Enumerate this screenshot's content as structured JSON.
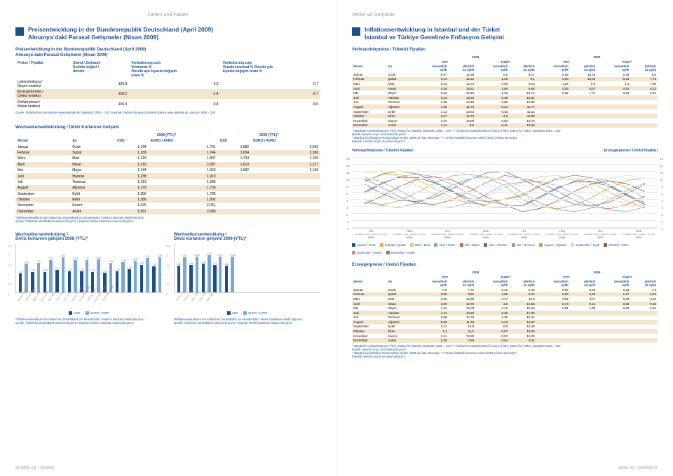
{
  "headers": {
    "left": "Zahlen und Fakten",
    "right": "Veriler ve Gerçekler"
  },
  "left_page": {
    "title_de": "Preisentwicklung in der Bundesrepublik Deutschland (April 2009)",
    "title_tr": "Almanya´daki Parasal Gelişmeler (Nisan 2009)",
    "price_table": {
      "caption_de": "Preisentwicklung in der Bundesrepublik Deutschland (April 2009)",
      "caption_tr": "Almanya´daki Parasal Gelişmeler (Nisan 2009)",
      "cols": [
        "Preise / Fiyatlar",
        "Stand / Zeitraum\nEndeks değeri /\ndönem",
        "Veränderung zum\nVormonat %\nÖnceki aya kıyasla değişim\noranı %",
        "Veränderung zum\nVorjahresmonat %  Önceki yıla\nkıyasla değişim oranı %"
      ],
      "rows": [
        [
          "Lebenshaltung /\nGeçim endeksi",
          "106,8",
          "0,0",
          "0,7"
        ],
        [
          "Erzeugerpreise /\nÜretici endeksi",
          "108,2",
          "-1,4",
          "-2,7"
        ],
        [
          "Einfuhrpreise /\nİthalat endeksi",
          "100,4",
          "-0,8",
          "-8,6"
        ]
      ],
      "source": "Quelle: Statistisches Bundesamt www.destatis.de, Basisjahr 2005 = 100 / Kaynak: Federal Almanya İstatistik Dairesi www.destatis.de, Baz yılı 2005 = 100"
    },
    "fx_table": {
      "caption": "Wechselkursentwicklung / Döviz Kurlarının Gelişimi",
      "year_cols": [
        "2008 (YTL)*",
        "2009 (YTL)*"
      ],
      "head": [
        "Monat",
        "Ay",
        "USD",
        "EURO / AVRO",
        "USD",
        "EURO / AVRO"
      ],
      "rows": [
        [
          "Januar",
          "Ocak",
          "1,144",
          "1,701",
          "1,582",
          "2,092"
        ],
        [
          "Februar",
          "Şubat",
          "1,189",
          "1,744",
          "1,634",
          "2,106"
        ],
        [
          "März",
          "Mart",
          "1,218",
          "1,897",
          "1,704",
          "2,199"
        ],
        [
          "April",
          "Nisan",
          "1,319",
          "2,097",
          "1,610",
          "2,127"
        ],
        [
          "Mai",
          "Mayıs",
          "1,244",
          "1,929",
          "1,582",
          "2,146"
        ],
        [
          "Juni",
          "Haziran",
          "1,238",
          "1,910",
          "",
          ""
        ],
        [
          "Juli",
          "Temmuz",
          "1,213",
          "1,939",
          "",
          ""
        ],
        [
          "August",
          "Ağustos",
          "1,179",
          "1,736",
          "",
          ""
        ],
        [
          "September",
          "Eylül",
          "1,256",
          "1,785",
          "",
          ""
        ],
        [
          "Oktober",
          "Ekim",
          "1,389",
          "1,892",
          "",
          ""
        ],
        [
          "November",
          "Kasım",
          "1,625",
          "2,061",
          "",
          ""
        ],
        [
          "Dezember",
          "Aralık",
          "1,557",
          "2,099",
          "",
          ""
        ]
      ],
      "source": "*Effektivverkaufskurs der türkischen Zentralbank zur Monatsmitte / Merkez Bankası efektif alış kuru\nQuelle: Türkische Zentralbank www.tcmb.gov.tr / Kaynak: Merkez Bankası www.tcmb.gov.tr"
    },
    "fx_charts": {
      "left_title": "Wechselkursentwicklung /\nDöviz kurlarının gelişimi 2008 (YTL)*",
      "right_title": "Wechselkursentwicklung /\nDöviz kurlarının gelişimi 2009 (YTL)*",
      "y_label": "Euro / Avro | YTL",
      "y_ticks_l": [
        "2,5",
        "2",
        "1,5",
        "1",
        "0,5",
        "0"
      ],
      "y_ticks_r": [
        "2,146",
        "2",
        "1,5",
        "1",
        "0,5",
        "0"
      ],
      "x_labels_2008": [
        "Januar / Ocak",
        "Februar / Şubat",
        "März / Mart",
        "April / Nisan",
        "Mai / Mayıs",
        "Juni / Haziran",
        "Juli / Temmuz",
        "August / Ağustos",
        "September / Eylül",
        "Oktober / Ekim",
        "November / Kasım",
        "Dezember / Aralık"
      ],
      "x_labels_2009": [
        "Januar / Ocak",
        "Februar / Şubat",
        "März / Mart",
        "April / Nisan",
        "Mai / Mayıs"
      ],
      "usd_2008": [
        1.144,
        1.189,
        1.218,
        1.319,
        1.244,
        1.238,
        1.213,
        1.179,
        1.256,
        1.389,
        1.625,
        1.557
      ],
      "eur_2008": [
        1.701,
        1.744,
        1.897,
        2.097,
        1.929,
        1.91,
        1.939,
        1.736,
        1.785,
        1.892,
        2.061,
        2.099
      ],
      "usd_2009": [
        1.582,
        1.634,
        1.704,
        1.61,
        1.582
      ],
      "eur_2009": [
        2.092,
        2.106,
        2.199,
        2.127,
        2.146
      ],
      "legend": [
        "USD",
        "EURO / AVRO"
      ],
      "colors": {
        "usd": "#1b4e8c",
        "eur": "#7aa9d4"
      },
      "y_max": 2.5
    },
    "footer": "26   ODA • 51 • 2009/04"
  },
  "right_page": {
    "title_de": "Inflationsentwicklung in Istanbul und der Türkei",
    "title_tr": "İstanbul ve Türkiye Genelinde Enflasyon Gelişimi",
    "consumer_table": {
      "caption": "Verbraucherpreise / Tüketici Fiyatları",
      "years": [
        "2008",
        "2009"
      ],
      "subheads": [
        "İTO*",
        "TÜİK**",
        "İTO*",
        "TÜİK**"
      ],
      "col_pair": [
        "monatlich\naylık",
        "jährlich\n12 aylık"
      ],
      "mon_hdr": [
        "Monat",
        "Ay"
      ],
      "rows": [
        [
          "Januar",
          "Ocak",
          "-0,97",
          "12,28",
          "0,8",
          "8,17",
          "0,62",
          "10,34",
          "0,29",
          "9,5"
        ],
        [
          "Februar",
          "Şubat",
          "0,13",
          "12,22",
          "1,29",
          "9,1",
          "0,08",
          "10,29",
          "-0,34",
          "7,73"
        ],
        [
          "März",
          "Mart",
          "2,12",
          "12,74",
          "0,96",
          "9,15",
          "1,24",
          "9,9",
          "1,1",
          "7,89"
        ],
        [
          "April",
          "Nisan",
          "4,26",
          "13,81",
          "1,68",
          "9,66",
          "3,06",
          "8,07",
          "0,02",
          "6,13"
        ],
        [
          "Mai",
          "Mayıs",
          "0,63",
          "14,16",
          "1,49",
          "10,74",
          "0,32",
          "7,74",
          "0,64",
          "5,24"
        ],
        [
          "Juni",
          "Haziran",
          "0,23",
          "14,52",
          "-0,36",
          "10,61",
          "",
          "",
          "",
          ""
        ],
        [
          "Juli",
          "Temmuz",
          "-1,86",
          "14,49",
          "0,58",
          "12,06",
          "",
          "",
          "",
          ""
        ],
        [
          "August",
          "Ağustos",
          "1,58",
          "15,74",
          "-0,24",
          "11,77",
          "",
          "",
          "",
          ""
        ],
        [
          "September",
          "Eylül",
          "1,13",
          "13,64",
          "0,45",
          "11,13",
          "",
          "",
          "",
          ""
        ],
        [
          "Oktober",
          "Ekim",
          "3,07",
          "12,74",
          "2,6",
          "11,99",
          "",
          "",
          "",
          ""
        ],
        [
          "November",
          "Kasım",
          "0,23",
          "10,85",
          "0,83",
          "10,76",
          "",
          "",
          "",
          ""
        ],
        [
          "Dezember",
          "Aralık",
          "-1,11",
          "8,6",
          "-0,41",
          "10,06",
          "",
          "",
          "",
          ""
        ]
      ],
      "source": "* Istanbuler Handelskammer (İTO), Daten für Istanbul; Basisjahr 1995 = 100; ** Türkisches Statistikinstitut Ankara (TÜİK), Daten für Türkei, Basisjahr 2003 = 100\nQuelle: www.ito.org.tr und www.tuik.gov.tr\n* İstanbul için İstanbul Ticaret Odası verileri, 1995 yılı baz alınmıştır; ** Türkiye İstatistik Kurumu verileri, 2003 yılı baz alınmıştır\nKaynak: www.ito.org.tr ve www.tuik.gov.tr"
    },
    "chart": {
      "left_title": "Verbraucherpreise / Tüketici Fiyatları",
      "right_title": "Erzeugerpreise / Üretici Fiyatları",
      "y_ticks": [
        "16",
        "14",
        "12",
        "10",
        "8",
        "6",
        "4",
        "2",
        "0",
        "-2",
        "-4"
      ],
      "x_groups": [
        {
          "top": "İTO",
          "sub": [
            "monatlich / aylık",
            "jährlich / 12 aylık"
          ],
          "year": "2008"
        },
        {
          "top": "TÜİK",
          "sub": [
            "monatlich / aylık",
            "jährlich / 12 aylık"
          ],
          "year": "2008"
        },
        {
          "top": "İTO",
          "sub": [
            "monatlich / aylık",
            "jährlich / 12 aylık"
          ],
          "year": "2009"
        },
        {
          "top": "TÜİK",
          "sub": [
            "monatlich / aylık",
            "jährlich / 12 aylık"
          ],
          "year": "2009"
        }
      ],
      "legend": [
        {
          "label": "Januar / Ocak",
          "color": "#1b4e8c"
        },
        {
          "label": "Februar / Şubat",
          "color": "#f7a941"
        },
        {
          "label": "März / Mart",
          "color": "#d9d07a"
        },
        {
          "label": "April / Nisan",
          "color": "#7aa9d4"
        },
        {
          "label": "Mai / Mayıs",
          "color": "#c7664b"
        },
        {
          "label": "Juni / Haziran",
          "color": "#556b9c"
        },
        {
          "label": "Juli / Temmuz",
          "color": "#999999"
        },
        {
          "label": "August / Ağustos",
          "color": "#b5a15c"
        },
        {
          "label": "September / Eylül",
          "color": "#d2dce8"
        },
        {
          "label": "Oktober / Ekim",
          "color": "#8c5c3c"
        },
        {
          "label": "November / Kasım",
          "color": "#c08e98"
        },
        {
          "label": "Dezember / Aralık",
          "color": "#6e8a6a"
        }
      ]
    },
    "producer_table": {
      "caption": "Erzeugerpreise / Üretici Fiyatları",
      "rows": [
        [
          "Januar",
          "Ocak",
          "0,9",
          "7,72",
          "0,42",
          "6,44",
          "-0,57",
          "6,29",
          "0,23",
          "7,9"
        ],
        [
          "Februar",
          "Şubat",
          "0,99",
          "8,91",
          "2,56",
          "8,15",
          "0,08",
          "5,33",
          "1,17",
          "6,43"
        ],
        [
          "März",
          "Mart",
          "2,65",
          "10,25",
          "3,17",
          "10,5",
          "0,65",
          "3,27",
          "0,29",
          "3,46"
        ],
        [
          "April",
          "Nisan",
          "3,89",
          "13,79",
          "4,5",
          "14,56",
          "0,73",
          "0,14",
          "0,65",
          "-0,35"
        ],
        [
          "Mai",
          "Mayıs",
          "1,22",
          "15,03",
          "2,12",
          "16,53",
          "-0,81",
          "-1,88",
          "-0,05",
          "-2,46"
        ],
        [
          "Juni",
          "Haziran",
          "1,31",
          "14,92",
          "0,32",
          "17,03",
          "",
          "",
          "",
          ""
        ],
        [
          "Juli",
          "Temmuz",
          "0,98",
          "14,76",
          "1,25",
          "18,41",
          "",
          "",
          "",
          ""
        ],
        [
          "August",
          "Ağustos",
          "-0,05",
          "11,76",
          "-2,34",
          "14,67",
          "",
          "",
          "",
          ""
        ],
        [
          "September",
          "Eylül",
          "0,14",
          "10,9",
          "-0,9",
          "12,49",
          "",
          "",
          "",
          ""
        ],
        [
          "Oktober",
          "Ekim",
          "1,1",
          "11,2",
          "0,57",
          "13,29",
          "",
          "",
          "",
          ""
        ],
        [
          "November",
          "Kasım",
          "0,11",
          "10,25",
          "-0,03",
          "12,25",
          "",
          "",
          "",
          ""
        ],
        [
          "Dezember",
          "Aralık",
          "-2,29",
          "7,86",
          "-3,54",
          "8,11",
          "",
          "",
          "",
          ""
        ]
      ],
      "source": "* Istanbuler Handelskammer (İTO), Daten für Istanbul; Basisjahr 1995 = 100; ** Türkisches Statistikinstitut Ankara (TÜİK), Daten für Türkei, Basisjahr 2003 = 100\nQuelle: www.ito.org.tr und www.tuik.gov.tr\n* İstanbul için İstanbul Ticaret Odası verileri, 1995 yılı baz alınmıştır; ** Türkiye İstatistik Kurumu verileri 2003 yılı baz alınmıştır\nKaynak: www.ito.org.tr ve www.tuik.gov.tr"
    },
    "footer": "ODA • 51 • 04/2009   27"
  }
}
